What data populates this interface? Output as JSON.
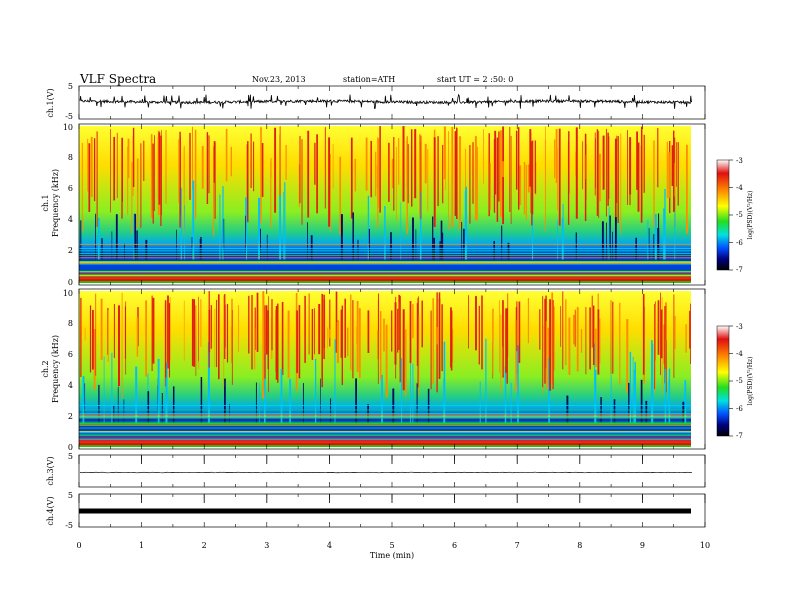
{
  "header": {
    "title": "VLF  Spectra",
    "date": "Nov.23, 2013",
    "station": "station=ATH",
    "start": "start  UT  =   2  :50: 0"
  },
  "colorbar": {
    "label": "log(PSD)(V²/Hz)",
    "ticks": [
      "-3",
      "-4",
      "-5",
      "-6",
      "-7"
    ],
    "stops": [
      "#ffffff",
      "#e01010",
      "#ff8c00",
      "#ffff00",
      "#22dd22",
      "#00e0e0",
      "#0050ff",
      "#000080",
      "#000000"
    ]
  },
  "chart_data": [
    {
      "type": "line",
      "title": "",
      "ylabel": "ch.1(V)",
      "yticks": [
        "5",
        "-5"
      ],
      "ylim": [
        -5,
        5
      ],
      "xlim": [
        0,
        10
      ],
      "series": [
        {
          "description": "noisy VLF waveform, baseline about +0.5 V, spikes up to +5 V and down to -4 V, continuous from 0 to ~9.8 min"
        }
      ]
    },
    {
      "type": "heatmap",
      "ylabel_top": "ch.1",
      "ylabel": "Frequency  (kHz)",
      "yticks": [
        "0",
        "2",
        "4",
        "6",
        "8",
        "10"
      ],
      "ylim": [
        0,
        10
      ],
      "xlim": [
        0,
        10
      ],
      "zrange_log": [
        -7,
        -3
      ],
      "description": "spectrogram, high PSD (red/yellow) above ~3 kHz with vertical sferic streaks, low PSD (blue) 0.5-3 kHz with horizontal lines, red line near 0.2 kHz"
    },
    {
      "type": "heatmap",
      "ylabel_top": "ch.2",
      "ylabel": "Frequency  (kHz)",
      "yticks": [
        "0",
        "2",
        "4",
        "6",
        "8",
        "10"
      ],
      "ylim": [
        0,
        10
      ],
      "xlim": [
        0,
        10
      ],
      "zrange_log": [
        -7,
        -3
      ],
      "description": "spectrogram similar to ch.1, green/cyan between 0.5-3 kHz"
    },
    {
      "type": "line",
      "ylabel": "ch.3(V)",
      "yticks": [
        "5"
      ],
      "ylim": [
        -5,
        5
      ],
      "xlim": [
        0,
        10
      ],
      "series": [
        {
          "description": "flat near -1 V"
        }
      ]
    },
    {
      "type": "line",
      "ylabel": "ch.4(V)",
      "yticks": [
        "5",
        "-5"
      ],
      "ylim": [
        -5,
        5
      ],
      "xlim": [
        0,
        10
      ],
      "series": [
        {
          "description": "thick flat band near 0 V"
        }
      ]
    }
  ],
  "xaxis": {
    "label": "Time  (min)",
    "ticks": [
      "0",
      "1",
      "2",
      "3",
      "4",
      "5",
      "6",
      "7",
      "8",
      "9",
      "10"
    ]
  }
}
